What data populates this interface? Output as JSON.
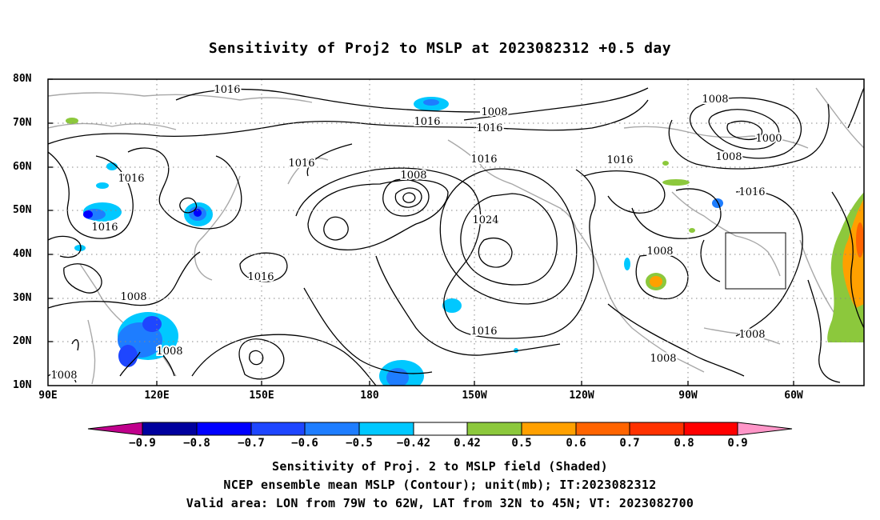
{
  "title": "Sensitivity of Proj2 to MSLP at 2023082312 +0.5 day",
  "lat_labels": [
    "80N",
    "70N",
    "60N",
    "50N",
    "40N",
    "30N",
    "20N",
    "10N"
  ],
  "lon_labels": [
    "90E",
    "120E",
    "150E",
    "180",
    "150W",
    "120W",
    "90W",
    "60W"
  ],
  "contour_labels": [
    "1016",
    "1008",
    "1016",
    "1016",
    "1016",
    "1016",
    "1016",
    "1008",
    "1024",
    "1016",
    "1016",
    "1008",
    "1000",
    "1008",
    "1016",
    "1016",
    "1008",
    "1016",
    "1008",
    "1008",
    "1008",
    "1008",
    "1008"
  ],
  "colorbar": {
    "labels": [
      "−0.9",
      "−0.8",
      "−0.7",
      "−0.6",
      "−0.5",
      "−0.42",
      "0.42",
      "0.5",
      "0.6",
      "0.7",
      "0.8",
      "0.9"
    ],
    "colors": [
      "#c0008c",
      "#00009e",
      "#0000ff",
      "#1e46ff",
      "#1e7dff",
      "#00c8ff",
      "#ffffff",
      "#8cc83c",
      "#ffa000",
      "#ff6400",
      "#ff3200",
      "#ff0000",
      "#ff96c8"
    ]
  },
  "captions": [
    "Sensitivity of Proj. 2 to MSLP field (Shaded)",
    "NCEP ensemble mean MSLP (Contour); unit(mb); IT:2023082312",
    "Valid area: LON from 79W to 62W, LAT from 32N to 45N; VT: 2023082700"
  ]
}
